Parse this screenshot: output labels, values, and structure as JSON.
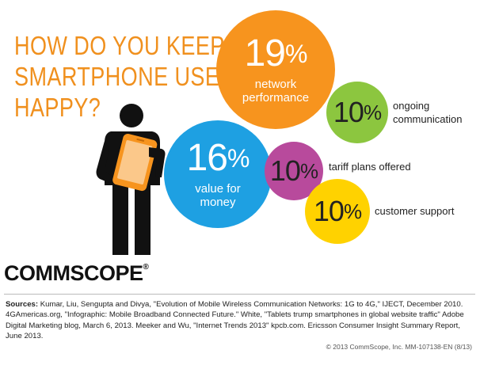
{
  "title_lines": [
    "HOW DO YOU KEEP",
    "SMARTPHONE USERS",
    "HAPPY?"
  ],
  "chart_data": {
    "type": "bubble",
    "title": "HOW DO YOU KEEP SMARTPHONE USERS HAPPY?",
    "units": "%",
    "categories": [
      "network performance",
      "value for money",
      "ongoing communication",
      "tariff plans offered",
      "customer support"
    ],
    "values": [
      19,
      16,
      10,
      10,
      10
    ]
  },
  "bubbles": [
    {
      "id": "network-performance",
      "value": "19",
      "sign": "%",
      "label": [
        "network",
        "performance"
      ],
      "color": "#f7941e"
    },
    {
      "id": "value-for-money",
      "value": "16",
      "sign": "%",
      "label": [
        "value for",
        "money"
      ],
      "color": "#1ea0e2"
    },
    {
      "id": "ongoing-communication",
      "value": "10",
      "sign": "%",
      "label": [
        "ongoing",
        "communication"
      ],
      "color": "#8cc63f"
    },
    {
      "id": "tariff-plans",
      "value": "10",
      "sign": "%",
      "label": [
        "tariff plans offered"
      ],
      "color": "#b84a9c"
    },
    {
      "id": "customer-support",
      "value": "10",
      "sign": "%",
      "label": [
        "customer support"
      ],
      "color": "#ffd200"
    }
  ],
  "logo": {
    "text": "COMMSCOPE",
    "mark": "®"
  },
  "sources": {
    "label": "Sources:",
    "text": "Kumar, Liu, Sengupta and Divya, \"Evolution of Mobile Wireless Communication Networks: 1G to 4G,\" IJECT, December 2010. 4GAmericas.org, \"Infographic: Mobile Broadband Connected Future.\" White, \"Tablets trump smartphones in global website traffic\" Adobe Digital Marketing blog, March 6, 2013. Meeker and Wu, \"Internet Trends 2013\" kpcb.com. Ericsson Consumer Insight Summary Report, June 2013."
  },
  "copyright": "© 2013 CommScope, Inc. MM-107138-EN (8/13)",
  "icons": {
    "person": "person-holding-tablet-icon"
  }
}
